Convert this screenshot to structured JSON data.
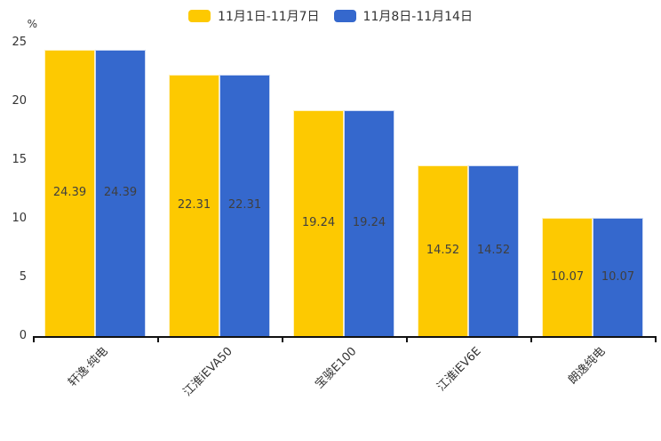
{
  "chart_data": {
    "type": "bar",
    "title": "",
    "y_unit": "%",
    "categories": [
      "轩逸·纯电",
      "江淮iEVA50",
      "宝骏E100",
      "江淮iEV6E",
      "朗逸纯电"
    ],
    "series": [
      {
        "name": "11月1日-11月7日",
        "color": "#FDC901",
        "values": [
          24.39,
          22.31,
          19.24,
          14.52,
          10.07
        ]
      },
      {
        "name": "11月8日-11月14日",
        "color": "#3568CD",
        "values": [
          24.39,
          22.31,
          19.24,
          14.52,
          10.07
        ]
      }
    ],
    "value_labels": [
      "24.39",
      "22.31",
      "19.24",
      "14.52",
      "10.07"
    ],
    "yticks": [
      "0",
      "5",
      "10",
      "15",
      "20",
      "25"
    ],
    "ylim": [
      0,
      25
    ],
    "grid": false,
    "legend_position": "top-center",
    "value_label_position": "inside-center",
    "colors": {
      "text": "#333333",
      "value_label": "#3f3f3f",
      "axis": "#111111"
    }
  }
}
